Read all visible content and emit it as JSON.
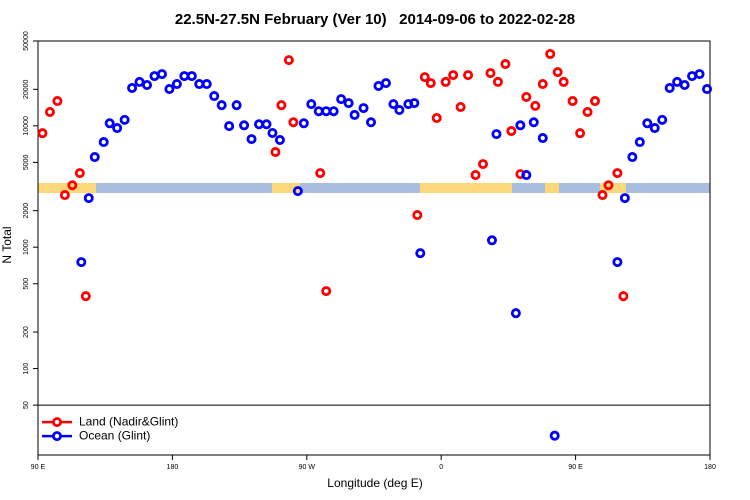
{
  "chart_data": {
    "type": "scatter",
    "title": "22.5N-27.5N February (Ver 10)   2014-09-06 to 2022-02-28",
    "x_label": "Longitude (deg E)",
    "y_label": "N Total",
    "log_y": true,
    "grid": false,
    "legend_position": "lower left",
    "xlim": [
      90,
      540
    ],
    "xticks": [
      {
        "value": 90,
        "label": "90 E"
      },
      180,
      {
        "value": 270,
        "label": "90 W"
      },
      {
        "value": 360,
        "label": "0"
      },
      {
        "value": 450,
        "label": "90 E"
      },
      {
        "value": 540,
        "label": "180"
      }
    ],
    "ylim": [
      19.4,
      50000
    ],
    "yticks": [
      50,
      100,
      200,
      500,
      1000,
      2000,
      5000,
      10000,
      20000,
      50000
    ],
    "series": [
      {
        "name": "Land (Nadir&Glint)",
        "color": "#ff0000",
        "x": [
          93,
          98,
          103,
          108,
          113,
          118,
          122,
          249,
          253,
          258,
          261,
          279,
          283,
          344,
          349,
          353,
          357,
          363,
          368,
          373,
          378,
          383,
          388,
          393,
          398,
          403,
          407,
          413,
          417,
          423,
          428,
          433,
          438,
          442,
          448,
          453,
          458,
          463,
          468,
          472,
          478,
          482
        ],
        "values": [
          8700,
          13000,
          16000,
          2690,
          3240,
          4080,
          395,
          6080,
          14800,
          34800,
          10700,
          4080,
          435,
          1840,
          25200,
          22500,
          11600,
          23000,
          26200,
          14300,
          26200,
          3930,
          4840,
          27200,
          23000,
          32300,
          9060,
          4000,
          17300,
          14600,
          22100,
          39100,
          27700,
          23000,
          16000,
          8700,
          13000,
          16000,
          2690,
          3240,
          4080,
          395
        ]
      },
      {
        "name": "Ocean (Glint)",
        "color": "#0000ff",
        "x": [
          119,
          124,
          128,
          134,
          138,
          143,
          148,
          153,
          158,
          163,
          168,
          173,
          178,
          183,
          188,
          193,
          198,
          203,
          208,
          213,
          218,
          223,
          228,
          233,
          238,
          243,
          247,
          252,
          264,
          268,
          273,
          278,
          283,
          288,
          293,
          298,
          302,
          308,
          313,
          318,
          323,
          328,
          332,
          338,
          342,
          346,
          394,
          397,
          410,
          413,
          417,
          422,
          428,
          436,
          478,
          483,
          488,
          493,
          498,
          503,
          508,
          513,
          518,
          523,
          528,
          533,
          538
        ],
        "values": [
          754,
          2540,
          5530,
          7350,
          10500,
          9590,
          11200,
          20500,
          23000,
          21700,
          25700,
          26700,
          20100,
          22100,
          25700,
          25700,
          22100,
          22100,
          17600,
          14800,
          9950,
          14800,
          10100,
          7780,
          10300,
          10300,
          8730,
          7640,
          2900,
          10500,
          15100,
          13200,
          13200,
          13200,
          16600,
          15400,
          12300,
          14000,
          10700,
          21300,
          22500,
          15100,
          13500,
          15100,
          15400,
          893,
          1140,
          8550,
          286,
          10100,
          3930,
          10700,
          7930,
          28,
          754,
          2540,
          5530,
          7350,
          10500,
          9590,
          11200,
          20500,
          23000,
          21700,
          25700,
          26700,
          20100
        ]
      }
    ]
  }
}
